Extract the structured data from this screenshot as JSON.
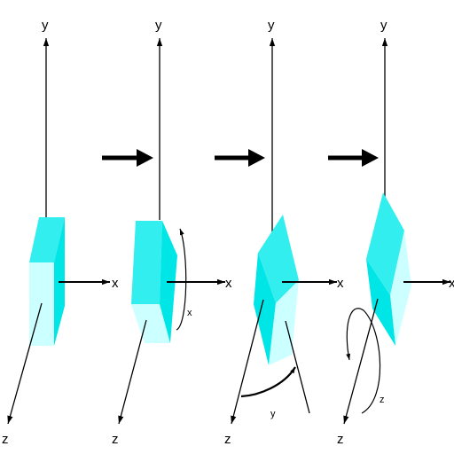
{
  "colors": {
    "background": "#ffffff",
    "ink": "#000000",
    "face_light": "#ccffff",
    "face_mid": "#33eeee",
    "face_dark": "#00e5e5"
  },
  "axes": {
    "x": "x",
    "y": "y",
    "z": "z"
  },
  "rotations": [
    {
      "axis_label": "x"
    },
    {
      "axis_label": "y"
    },
    {
      "axis_label": "z"
    }
  ],
  "icons": {
    "step_arrow": "right-arrow-icon",
    "rotation_arrow": "curved-arrow-icon"
  }
}
